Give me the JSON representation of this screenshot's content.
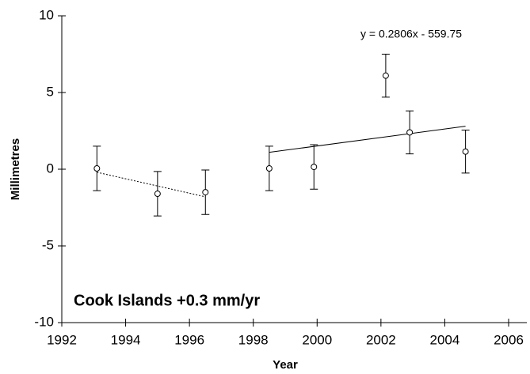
{
  "chart_data": {
    "type": "scatter",
    "title": "Cook Islands +0.3 mm/yr",
    "x_label": "Year",
    "y_label": "Millimetres",
    "annotation": "y = 0.2806x - 559.75",
    "x": [
      1993.1,
      1995.0,
      1996.5,
      1998.5,
      1999.9,
      2002.15,
      2002.9,
      2004.65
    ],
    "values": [
      0.05,
      -1.6,
      -1.5,
      0.05,
      0.15,
      6.1,
      2.4,
      1.15
    ],
    "errors": [
      1.45,
      1.45,
      1.45,
      1.45,
      1.45,
      1.4,
      1.4,
      1.4
    ],
    "color": "#000000",
    "trendlines": [
      {
        "style": "dotted",
        "x": [
          1993.1,
          1996.5
        ],
        "values": [
          -0.2,
          -1.8
        ]
      },
      {
        "style": "solid",
        "x": [
          1998.5,
          2004.65
        ],
        "values": [
          1.1,
          2.8
        ]
      }
    ],
    "xlim": [
      1992,
      2006
    ],
    "xticks": [
      1992,
      1994,
      1996,
      1998,
      2000,
      2002,
      2004,
      2006
    ],
    "ylim": [
      -10,
      10
    ],
    "yticks": [
      -10,
      -5,
      0,
      5,
      10
    ]
  }
}
